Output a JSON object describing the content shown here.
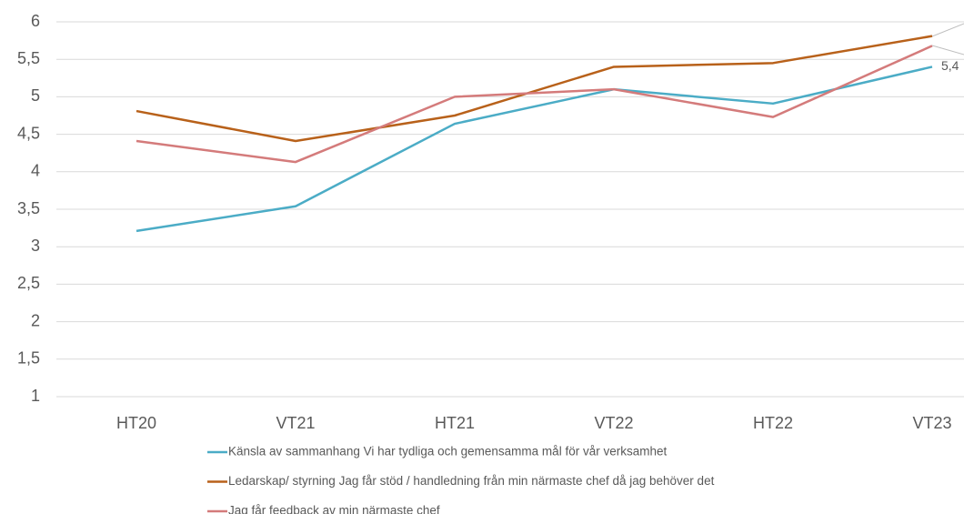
{
  "chart_data": {
    "type": "line",
    "categories": [
      "HT20",
      "VT21",
      "HT21",
      "VT22",
      "HT22",
      "VT23"
    ],
    "series": [
      {
        "name": "Känsla av sammanhang  Vi har tydliga och gemensamma mål för vår verksamhet",
        "color": "#4bacc6",
        "values": [
          3.21,
          3.54,
          4.64,
          5.1,
          4.91,
          5.4
        ],
        "value_labels": [
          null,
          null,
          null,
          null,
          null,
          "5,4"
        ]
      },
      {
        "name": "Ledarskap/ styrning  Jag får stöd / handledning från min närmaste chef  då jag behöver det",
        "color": "#b8611a",
        "values": [
          4.81,
          4.41,
          4.75,
          5.4,
          5.45,
          5.81
        ]
      },
      {
        "name": "Jag får feedback av min närmaste chef",
        "color": "#d47b7b",
        "values": [
          4.41,
          4.13,
          5.0,
          5.1,
          4.73,
          5.68
        ]
      }
    ],
    "ylim": [
      1,
      6
    ],
    "yticks": [
      1,
      {
        "value": 1.5,
        "label": "1,5"
      },
      2,
      {
        "value": 2.5,
        "label": "2,5"
      },
      3,
      {
        "value": 3.5,
        "label": "3,5"
      },
      4,
      {
        "value": 4.5,
        "label": "4,5"
      },
      5,
      {
        "value": 5.5,
        "label": "5,5"
      },
      6
    ],
    "grid": true
  }
}
